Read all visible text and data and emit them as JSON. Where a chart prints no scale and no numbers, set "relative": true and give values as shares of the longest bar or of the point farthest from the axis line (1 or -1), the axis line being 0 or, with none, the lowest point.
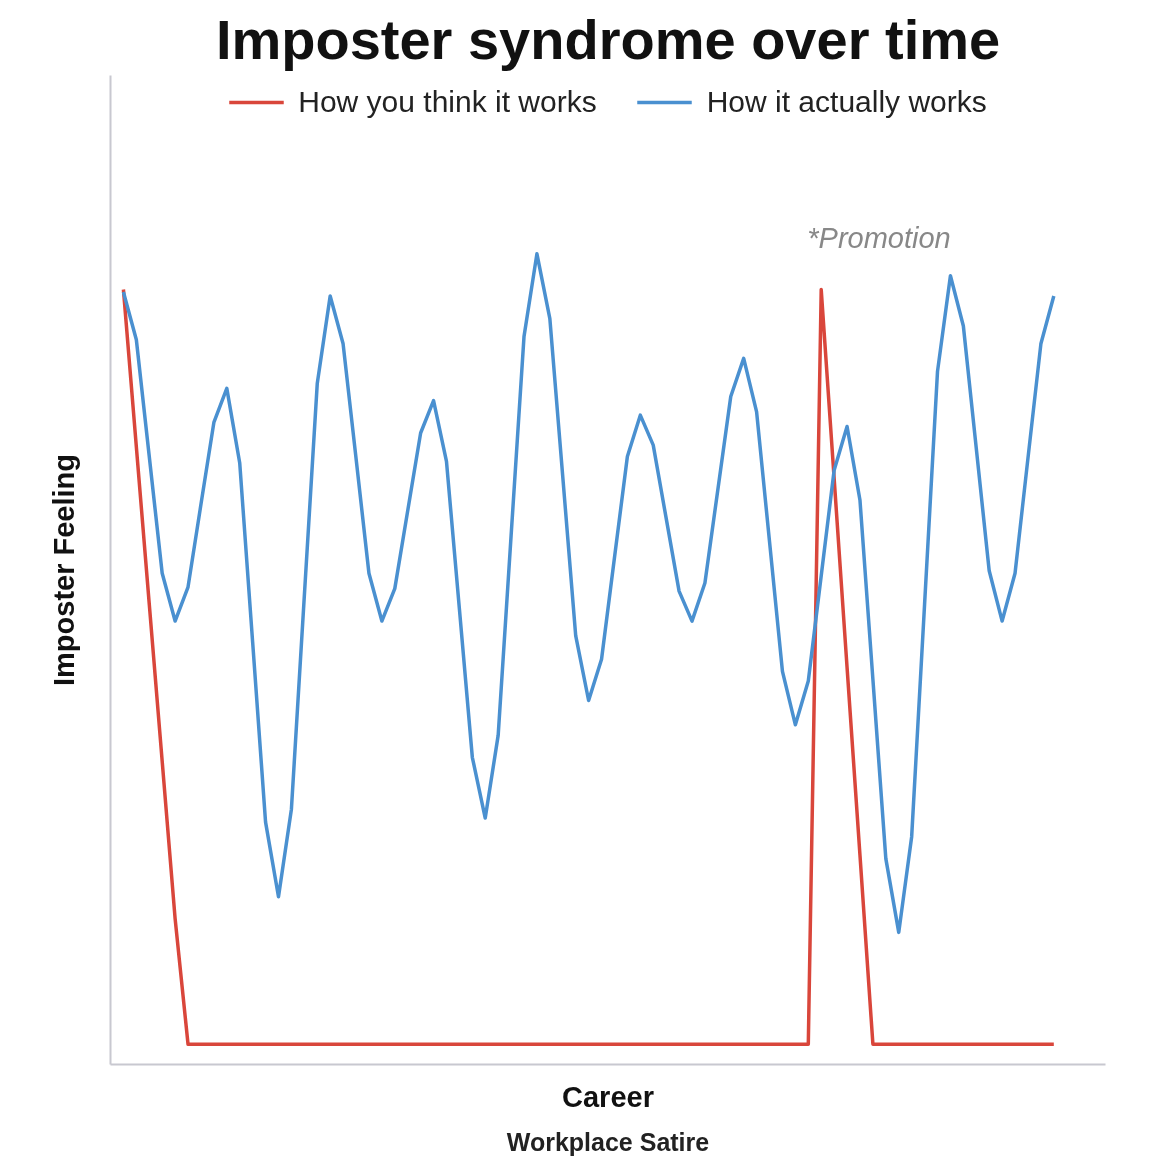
{
  "chart_data": {
    "type": "line",
    "title": "Imposter syndrome over time",
    "xlabel": "Career",
    "ylabel": "Imposter Feeling",
    "relative": true,
    "legend": "top",
    "grid": false,
    "marker": "none",
    "line_style": "solid",
    "tick_labels": false,
    "categories": [
      null,
      null,
      null,
      null,
      null,
      null,
      null,
      null,
      null,
      null,
      null,
      null,
      null,
      null,
      null,
      null,
      null,
      null,
      null,
      null,
      null,
      null,
      null,
      null,
      null,
      null,
      null,
      null,
      null,
      null,
      null,
      null,
      null,
      null,
      null,
      null,
      null,
      null,
      null,
      null,
      null,
      null,
      null,
      null,
      null,
      null,
      null,
      null,
      null,
      null,
      null,
      null,
      null,
      null,
      null,
      null,
      null,
      null,
      null,
      null,
      null,
      null,
      null,
      null,
      null,
      null,
      null,
      null,
      null,
      null,
      null,
      null,
      null
    ],
    "series": [
      {
        "name": "How you think it works",
        "color": "#d9463b",
        "values": [
          0.956,
          0.762,
          0.568,
          0.374,
          0.18,
          0.025,
          0.025,
          0.025,
          0.025,
          0.025,
          0.025,
          0.025,
          0.025,
          0.025,
          0.025,
          0.025,
          0.025,
          0.025,
          0.025,
          0.025,
          0.025,
          0.025,
          0.025,
          0.025,
          0.025,
          0.025,
          0.025,
          0.025,
          0.025,
          0.025,
          0.025,
          0.025,
          0.025,
          0.025,
          0.025,
          0.025,
          0.025,
          0.025,
          0.025,
          0.025,
          0.025,
          0.025,
          0.025,
          0.025,
          0.025,
          0.025,
          0.025,
          0.025,
          0.025,
          0.025,
          0.025,
          0.025,
          0.025,
          0.025,
          0.956,
          0.723,
          0.49,
          0.258,
          0.025,
          0.025,
          0.025,
          0.025,
          0.025,
          0.025,
          0.025,
          0.025,
          0.025,
          0.025,
          0.025,
          0.025,
          0.025,
          0.025,
          0.025
        ]
      },
      {
        "name": "How it actually works",
        "color": "#4a90d0",
        "values": [
          0.953,
          0.894,
          0.75,
          0.606,
          0.547,
          0.589,
          0.691,
          0.792,
          0.834,
          0.742,
          0.521,
          0.299,
          0.207,
          0.315,
          0.578,
          0.84,
          0.948,
          0.889,
          0.748,
          0.606,
          0.547,
          0.587,
          0.683,
          0.779,
          0.819,
          0.744,
          0.562,
          0.379,
          0.304,
          0.406,
          0.652,
          0.898,
          1.0,
          0.92,
          0.725,
          0.529,
          0.449,
          0.5,
          0.625,
          0.75,
          0.801,
          0.764,
          0.674,
          0.584,
          0.547,
          0.594,
          0.709,
          0.824,
          0.871,
          0.805,
          0.645,
          0.485,
          0.419,
          0.473,
          0.603,
          0.733,
          0.787,
          0.696,
          0.475,
          0.254,
          0.163,
          0.281,
          0.568,
          0.855,
          0.973,
          0.911,
          0.76,
          0.609,
          0.547,
          0.606,
          0.748,
          0.889,
          0.948
        ]
      }
    ],
    "annotations": [
      "*Promotion",
      "Workplace Satire"
    ]
  }
}
